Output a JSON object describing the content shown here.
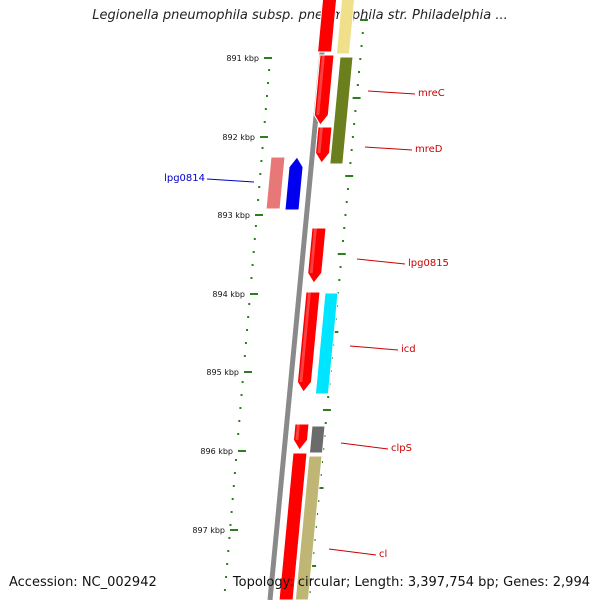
{
  "title": "Legionella pneumophila subsp. pneumophila str. Philadelphia ...",
  "footer": {
    "accession": "Accession: NC_002942",
    "topology": "Topology: circular; Length: 3,397,754 bp; Genes: 2,994"
  },
  "colors": {
    "backbone": "#8a8a8a",
    "scale_ticks": "#2e7d20",
    "gene_forward_label": "#cc0000",
    "gene_reverse_label": "#0000cc"
  },
  "scale": {
    "unit": "kbp",
    "labels": [
      "891 kbp",
      "892 kbp",
      "893 kbp",
      "894 kbp",
      "895 kbp",
      "896 kbp",
      "897 kbp"
    ]
  },
  "genes": [
    {
      "name": "mreC",
      "strand": "forward"
    },
    {
      "name": "mreD",
      "strand": "forward"
    },
    {
      "name": "lpg0814",
      "strand": "reverse"
    },
    {
      "name": "lpg0815",
      "strand": "forward"
    },
    {
      "name": "icd",
      "strand": "forward"
    },
    {
      "name": "clpS",
      "strand": "forward"
    },
    {
      "name": "cl",
      "strand": "forward"
    }
  ],
  "feature_colors": {
    "cds_forward": "#ff0000",
    "cds_reverse": "#0000ee",
    "cds_reverse_light": "#e87878",
    "cog_olive": "#6b7f1f",
    "cog_pale_yellow": "#f0e08c",
    "cog_cyan": "#00e5ff",
    "cog_grey": "#6b6b6b",
    "cog_khaki": "#bfb675"
  }
}
